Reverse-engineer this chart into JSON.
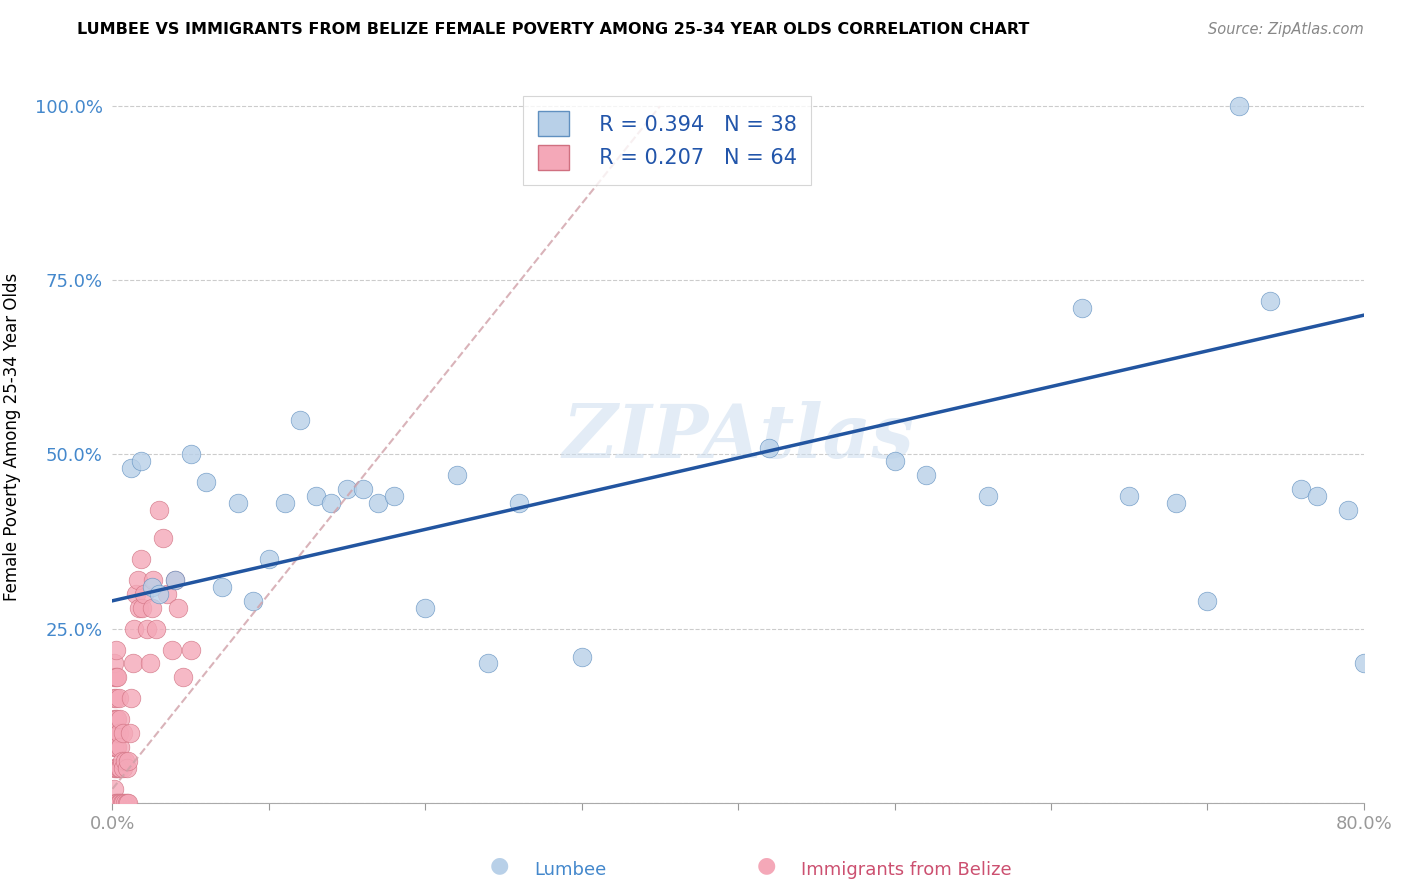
{
  "title": "LUMBEE VS IMMIGRANTS FROM BELIZE FEMALE POVERTY AMONG 25-34 YEAR OLDS CORRELATION CHART",
  "source": "Source: ZipAtlas.com",
  "ylabel": "Female Poverty Among 25-34 Year Olds",
  "xlabel_lumbee": "Lumbee",
  "xlabel_belize": "Immigrants from Belize",
  "lumbee_R": "R = 0.394",
  "lumbee_N": "N = 38",
  "belize_R": "R = 0.207",
  "belize_N": "N = 64",
  "lumbee_color": "#b8d0e8",
  "belize_color": "#f4a8b8",
  "lumbee_line_color": "#2255a0",
  "belize_line_color": "#e08090",
  "watermark": "ZIPAtlas",
  "xlim": [
    0.0,
    0.8
  ],
  "ylim": [
    0.0,
    1.05
  ],
  "lumbee_line_x0": 0.0,
  "lumbee_line_y0": 0.29,
  "lumbee_line_x1": 0.8,
  "lumbee_line_y1": 0.7,
  "belize_line_x0": 0.0,
  "belize_line_y0": 0.02,
  "belize_line_x1": 0.35,
  "belize_line_y1": 1.0,
  "lumbee_x": [
    0.012,
    0.018,
    0.025,
    0.03,
    0.04,
    0.05,
    0.06,
    0.07,
    0.08,
    0.09,
    0.1,
    0.11,
    0.12,
    0.13,
    0.14,
    0.15,
    0.16,
    0.17,
    0.18,
    0.2,
    0.22,
    0.24,
    0.26,
    0.3,
    0.42,
    0.5,
    0.52,
    0.56,
    0.62,
    0.65,
    0.68,
    0.7,
    0.72,
    0.74,
    0.76,
    0.77,
    0.79,
    0.8
  ],
  "lumbee_y": [
    0.48,
    0.49,
    0.31,
    0.3,
    0.32,
    0.5,
    0.46,
    0.31,
    0.43,
    0.29,
    0.35,
    0.43,
    0.55,
    0.44,
    0.43,
    0.45,
    0.45,
    0.43,
    0.44,
    0.28,
    0.47,
    0.2,
    0.43,
    0.21,
    0.51,
    0.49,
    0.47,
    0.44,
    0.71,
    0.44,
    0.43,
    0.29,
    1.0,
    0.72,
    0.45,
    0.44,
    0.42,
    0.2
  ],
  "belize_x": [
    0.001,
    0.001,
    0.001,
    0.001,
    0.001,
    0.001,
    0.001,
    0.001,
    0.001,
    0.002,
    0.002,
    0.002,
    0.002,
    0.002,
    0.002,
    0.002,
    0.002,
    0.003,
    0.003,
    0.003,
    0.003,
    0.003,
    0.004,
    0.004,
    0.004,
    0.004,
    0.005,
    0.005,
    0.005,
    0.005,
    0.006,
    0.006,
    0.007,
    0.007,
    0.007,
    0.008,
    0.008,
    0.009,
    0.009,
    0.01,
    0.01,
    0.011,
    0.012,
    0.013,
    0.014,
    0.015,
    0.016,
    0.017,
    0.018,
    0.019,
    0.02,
    0.022,
    0.024,
    0.025,
    0.026,
    0.028,
    0.03,
    0.032,
    0.035,
    0.038,
    0.04,
    0.042,
    0.045,
    0.05
  ],
  "belize_y": [
    0.0,
    0.02,
    0.05,
    0.08,
    0.1,
    0.12,
    0.15,
    0.18,
    0.2,
    0.0,
    0.05,
    0.08,
    0.1,
    0.12,
    0.15,
    0.18,
    0.22,
    0.0,
    0.05,
    0.08,
    0.12,
    0.18,
    0.0,
    0.05,
    0.1,
    0.15,
    0.0,
    0.05,
    0.08,
    0.12,
    0.0,
    0.06,
    0.0,
    0.05,
    0.1,
    0.0,
    0.06,
    0.0,
    0.05,
    0.0,
    0.06,
    0.1,
    0.15,
    0.2,
    0.25,
    0.3,
    0.32,
    0.28,
    0.35,
    0.28,
    0.3,
    0.25,
    0.2,
    0.28,
    0.32,
    0.25,
    0.42,
    0.38,
    0.3,
    0.22,
    0.32,
    0.28,
    0.18,
    0.22
  ]
}
